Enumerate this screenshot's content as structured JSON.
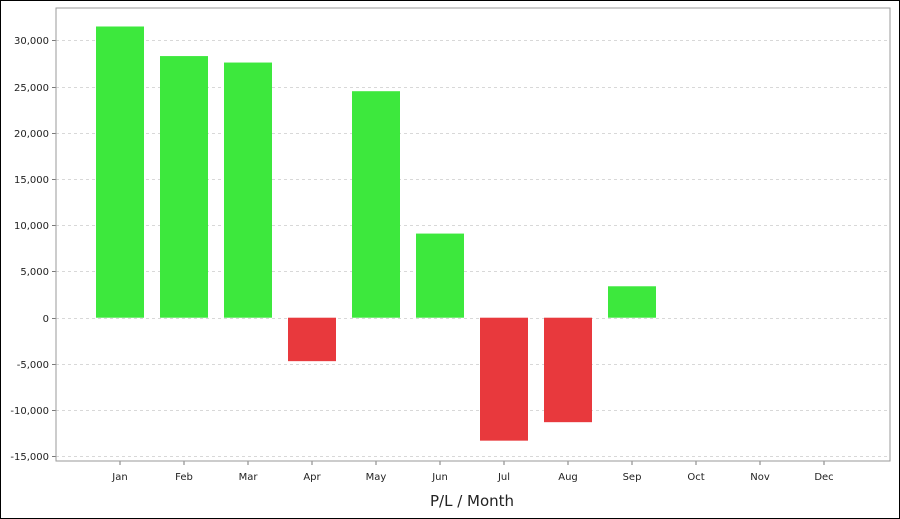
{
  "chart_data": {
    "type": "bar",
    "title": "",
    "xlabel": "P/L / Month",
    "ylabel": "",
    "categories": [
      "Jan",
      "Feb",
      "Mar",
      "Apr",
      "May",
      "Jun",
      "Jul",
      "Aug",
      "Sep",
      "Oct",
      "Nov",
      "Dec"
    ],
    "values": [
      31500,
      28300,
      27600,
      -4700,
      24500,
      9100,
      -13300,
      -11300,
      3400,
      null,
      null,
      null
    ],
    "ylim": [
      -15500,
      33500
    ],
    "yticks": [
      -15000,
      -10000,
      -5000,
      0,
      5000,
      10000,
      15000,
      20000,
      25000,
      30000
    ],
    "ytick_labels": [
      "-15,000",
      "-10,000",
      "-5,000",
      "0",
      "5,000",
      "10,000",
      "15,000",
      "20,000",
      "25,000",
      "30,000"
    ],
    "grid": true,
    "colors": {
      "positive": "#3de83d",
      "negative": "#e8393d",
      "grid": "#d8d8d8",
      "plot_border": "#9a9a9a",
      "axis": "#7a7a7a"
    }
  }
}
